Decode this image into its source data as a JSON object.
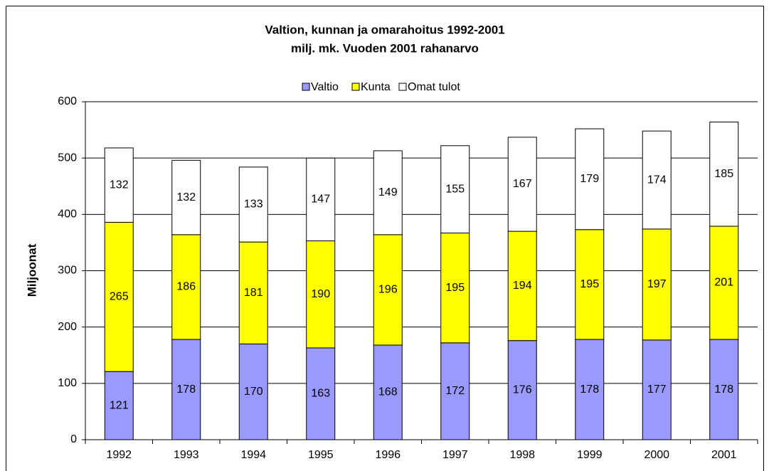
{
  "chart_data": {
    "type": "stacked_bar",
    "title": "Valtion, kunnan ja omarahoitus 1992-2001",
    "subtitle": "milj. mk. Vuoden 2001 rahanarvo",
    "y_label": "Miljoonat",
    "categories": [
      "1992",
      "1993",
      "1994",
      "1995",
      "1996",
      "1997",
      "1998",
      "1999",
      "2000",
      "2001"
    ],
    "series": [
      {
        "name": "Valtio",
        "color": "#9999ff",
        "values": [
          121,
          178,
          170,
          163,
          168,
          172,
          176,
          178,
          177,
          178
        ]
      },
      {
        "name": "Kunta",
        "color": "#ffff00",
        "values": [
          265,
          186,
          181,
          190,
          196,
          195,
          194,
          195,
          197,
          201
        ]
      },
      {
        "name": "Omat tulot",
        "color": "#ffffff",
        "values": [
          132,
          132,
          133,
          147,
          149,
          155,
          167,
          179,
          174,
          185
        ]
      }
    ],
    "ylim": [
      0,
      600
    ],
    "yticks": [
      0,
      100,
      200,
      300,
      400,
      500,
      600
    ],
    "grid": true,
    "legend": "top"
  }
}
